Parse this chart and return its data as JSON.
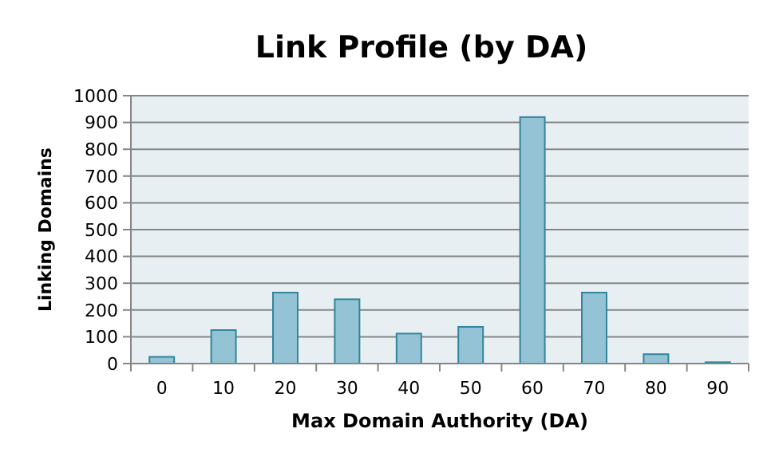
{
  "chart_data": {
    "type": "bar",
    "title": "Link Profile (by DA)",
    "xlabel": "Max Domain Authority (DA)",
    "ylabel": "Linking Domains",
    "categories": [
      "0",
      "10",
      "20",
      "30",
      "40",
      "50",
      "60",
      "70",
      "80",
      "90"
    ],
    "values": [
      25,
      125,
      265,
      240,
      112,
      137,
      920,
      265,
      35,
      5
    ],
    "color": "#93c3d5",
    "ylim": [
      0,
      1000
    ],
    "yticks": [
      0,
      100,
      200,
      300,
      400,
      500,
      600,
      700,
      800,
      900,
      1000
    ],
    "grid": "y"
  }
}
